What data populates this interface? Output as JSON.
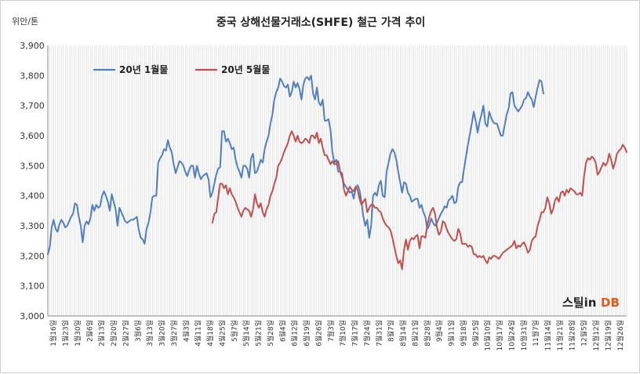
{
  "chart_data": {
    "type": "line",
    "title": "중국 상해선물거래소(SHFE) 철근 가격 추이",
    "ylabel": "위안/톤",
    "ylim": [
      3000,
      3900
    ],
    "yticks": [
      "3,000",
      "3,100",
      "3,200",
      "3,300",
      "3,400",
      "3,500",
      "3,600",
      "3,700",
      "3,800",
      "3,900"
    ],
    "grid": true,
    "legend_position": "top-left",
    "x_tick_labels": [
      "1월16일",
      "1월23일",
      "1월30일",
      "2월6일",
      "2월13일",
      "2월20일",
      "2월27일",
      "3월6일",
      "3월13일",
      "3월20일",
      "3월27일",
      "4월3일",
      "4월11일",
      "4월18일",
      "4월25일",
      "5월7일",
      "5월14일",
      "5월21일",
      "5월28일",
      "6월4일",
      "6월12일",
      "6월19일",
      "6월26일",
      "7월3일",
      "7월10일",
      "7월17일",
      "7월24일",
      "7월31일",
      "8월7일",
      "8월14일",
      "8월21일",
      "8월28일",
      "9월4일",
      "9월11일",
      "9월18일",
      "9월25일",
      "10월10일",
      "10월17일",
      "10월24일",
      "10월31일",
      "11월7일",
      "11월14일",
      "11월21일",
      "11월28일",
      "12월5일",
      "12월12일",
      "12월19일",
      "12월26일"
    ],
    "series": [
      {
        "name": "20년 1월물",
        "color": "#4f7fbf",
        "start_index": 0,
        "values": [
          3205,
          3230,
          3295,
          3320,
          3290,
          3280,
          3305,
          3320,
          3310,
          3295,
          3300,
          3315,
          3330,
          3340,
          3375,
          3370,
          3330,
          3300,
          3245,
          3300,
          3315,
          3305,
          3325,
          3370,
          3350,
          3370,
          3360,
          3365,
          3400,
          3415,
          3400,
          3380,
          3350,
          3405,
          3380,
          3355,
          3300,
          3360,
          3345,
          3330,
          3315,
          3310,
          3315,
          3320,
          3320,
          3325,
          3330,
          3285,
          3260,
          3255,
          3240,
          3290,
          3310,
          3345,
          3395,
          3400,
          3400,
          3510,
          3525,
          3535,
          3555,
          3550,
          3585,
          3560,
          3545,
          3505,
          3475,
          3495,
          3515,
          3510,
          3500,
          3480,
          3465,
          3485,
          3500,
          3500,
          3460,
          3500,
          3475,
          3455,
          3465,
          3470,
          3475,
          3455,
          3395,
          3410,
          3440,
          3470,
          3490,
          3495,
          3615,
          3615,
          3580,
          3590,
          3575,
          3555,
          3560,
          3520,
          3495,
          3480,
          3460,
          3500,
          3500,
          3490,
          3460,
          3525,
          3540,
          3475,
          3480,
          3500,
          3520,
          3510,
          3555,
          3580,
          3600,
          3640,
          3670,
          3720,
          3745,
          3760,
          3790,
          3780,
          3765,
          3760,
          3770,
          3730,
          3745,
          3780,
          3760,
          3775,
          3755,
          3720,
          3770,
          3790,
          3795,
          3785,
          3800,
          3740,
          3720,
          3760,
          3710,
          3700,
          3720,
          3650,
          3650,
          3655,
          3620,
          3545,
          3510,
          3520,
          3480,
          3480,
          3460,
          3440,
          3430,
          3420,
          3410,
          3415,
          3390,
          3425,
          3435,
          3420,
          3380,
          3330,
          3300,
          3320,
          3260,
          3300,
          3400,
          3410,
          3400,
          3435,
          3450,
          3400,
          3395,
          3480,
          3510,
          3540,
          3555,
          3545,
          3520,
          3480,
          3445,
          3410,
          3445,
          3440,
          3410,
          3400,
          3380,
          3385,
          3390,
          3390,
          3360,
          3370,
          3345,
          3330,
          3290,
          3300,
          3325,
          3310,
          3300,
          3310,
          3325,
          3340,
          3350,
          3365,
          3360,
          3385,
          3390,
          3400,
          3375,
          3380,
          3430,
          3445,
          3445,
          3490,
          3530,
          3570,
          3605,
          3640,
          3680,
          3650,
          3610,
          3645,
          3670,
          3700,
          3640,
          3630,
          3680,
          3660,
          3645,
          3640,
          3640,
          3620,
          3600,
          3600,
          3635,
          3670,
          3690,
          3740,
          3745,
          3700,
          3690,
          3680,
          3690,
          3700,
          3720,
          3725,
          3745,
          3730,
          3720,
          3695,
          3730,
          3760,
          3785,
          3780,
          3740
        ]
      },
      {
        "name": "20년 5월물",
        "color": "#c0504d",
        "start_index": 85,
        "values": [
          3310,
          3340,
          3345,
          3395,
          3440,
          3440,
          3425,
          3435,
          3405,
          3425,
          3405,
          3395,
          3380,
          3360,
          3345,
          3330,
          3350,
          3360,
          3355,
          3350,
          3330,
          3355,
          3405,
          3375,
          3360,
          3375,
          3345,
          3330,
          3355,
          3370,
          3400,
          3415,
          3440,
          3460,
          3500,
          3510,
          3525,
          3545,
          3560,
          3575,
          3600,
          3615,
          3600,
          3580,
          3600,
          3580,
          3575,
          3580,
          3590,
          3585,
          3575,
          3600,
          3600,
          3590,
          3610,
          3575,
          3590,
          3560,
          3535,
          3535,
          3520,
          3505,
          3515,
          3505,
          3505,
          3515,
          3480,
          3475,
          3420,
          3400,
          3415,
          3430,
          3420,
          3415,
          3430,
          3420,
          3390,
          3370,
          3380,
          3390,
          3345,
          3360,
          3370,
          3370,
          3360,
          3360,
          3350,
          3345,
          3325,
          3310,
          3300,
          3295,
          3285,
          3260,
          3230,
          3200,
          3175,
          3185,
          3155,
          3220,
          3255,
          3220,
          3250,
          3260,
          3255,
          3265,
          3270,
          3225,
          3265,
          3265,
          3260,
          3300,
          3330,
          3350,
          3360,
          3340,
          3295,
          3270,
          3280,
          3315,
          3310,
          3290,
          3275,
          3265,
          3255,
          3250,
          3255,
          3290,
          3275,
          3240,
          3240,
          3240,
          3230,
          3235,
          3230,
          3205,
          3205,
          3195,
          3200,
          3195,
          3200,
          3185,
          3175,
          3195,
          3190,
          3200,
          3200,
          3195,
          3190,
          3200,
          3210,
          3215,
          3220,
          3225,
          3230,
          3235,
          3250,
          3225,
          3235,
          3230,
          3240,
          3245,
          3230,
          3210,
          3220,
          3250,
          3260,
          3265,
          3300,
          3320,
          3345,
          3345,
          3360,
          3395,
          3375,
          3340,
          3355,
          3385,
          3395,
          3380,
          3410,
          3415,
          3400,
          3420,
          3410,
          3425,
          3420,
          3415,
          3405,
          3405,
          3410,
          3400,
          3465,
          3510,
          3525,
          3520,
          3530,
          3525,
          3510,
          3470,
          3480,
          3495,
          3510,
          3500,
          3510,
          3540,
          3520,
          3490,
          3510,
          3540,
          3550,
          3555,
          3570,
          3560,
          3545
        ]
      }
    ]
  },
  "logo": {
    "part1": "스틸in",
    "part2": "DB"
  }
}
